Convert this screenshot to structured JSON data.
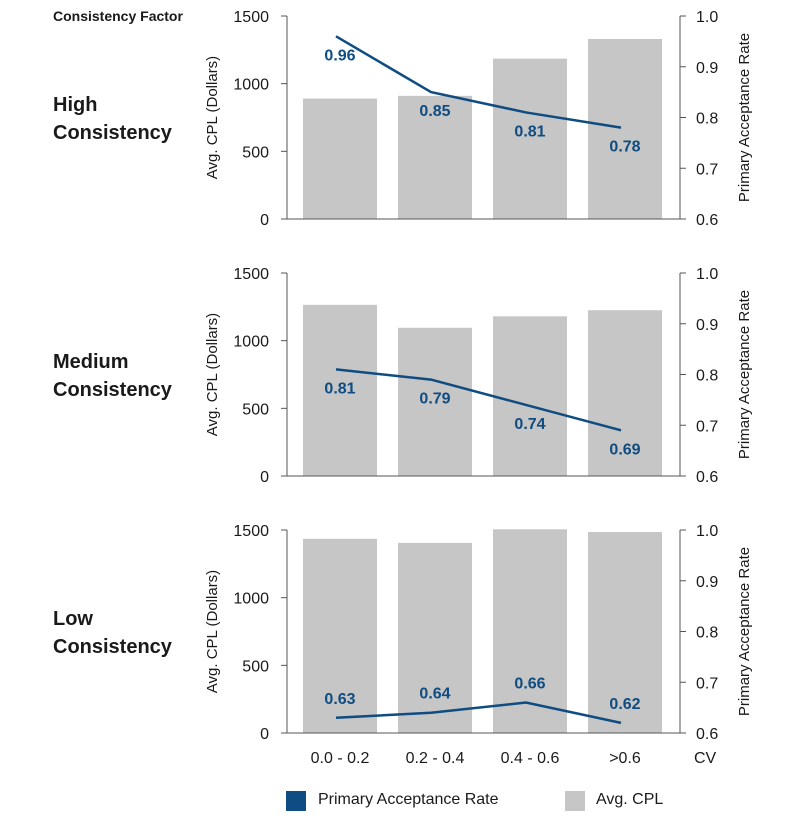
{
  "colors": {
    "bar": "#c6c6c6",
    "line": "#0f4c81",
    "axis": "#555555",
    "text": "#1a1a1a"
  },
  "header": {
    "label": "Consistency Factor"
  },
  "shared": {
    "left_axis_label": "Avg. CPL (Dollars)",
    "right_axis_label": "Primary Acceptance Rate",
    "x_axis_label": "CV",
    "categories": [
      "0.0 - 0.2",
      "0.2 - 0.4",
      "0.4 - 0.6",
      ">0.6"
    ],
    "left_ticks": [
      "0",
      "500",
      "1000",
      "1500"
    ],
    "right_ticks": [
      "0.6",
      "0.7",
      "0.8",
      "0.9",
      "1.0"
    ]
  },
  "legend": {
    "line_label": "Primary Acceptance Rate",
    "bar_label": "Avg. CPL"
  },
  "panels": [
    {
      "row_label_1": "High",
      "row_label_2": "Consistency",
      "rate_labels": [
        "0.96",
        "0.85",
        "0.81",
        "0.78"
      ]
    },
    {
      "row_label_1": "Medium",
      "row_label_2": "Consistency",
      "rate_labels": [
        "0.81",
        "0.79",
        "0.74",
        "0.69"
      ]
    },
    {
      "row_label_1": "Low",
      "row_label_2": "Consistency",
      "rate_labels": [
        "0.63",
        "0.64",
        "0.66",
        "0.62"
      ]
    }
  ],
  "chart_data": [
    {
      "type": "bar",
      "facet": "High Consistency",
      "categories": [
        "0.0 - 0.2",
        "0.2 - 0.4",
        "0.4 - 0.6",
        ">0.6"
      ],
      "series": [
        {
          "name": "Avg. CPL",
          "axis": "left",
          "type": "bar",
          "values": [
            890,
            910,
            1185,
            1330
          ]
        },
        {
          "name": "Primary Acceptance Rate",
          "axis": "right",
          "type": "line",
          "values": [
            0.96,
            0.85,
            0.81,
            0.78
          ]
        }
      ],
      "xlabel": "CV",
      "ylabel": "Avg. CPL (Dollars)",
      "y2label": "Primary Acceptance Rate",
      "ylim": [
        0,
        1500
      ],
      "y2lim": [
        0.6,
        1.0
      ],
      "grid": false,
      "legend": "bottom"
    },
    {
      "type": "bar",
      "facet": "Medium Consistency",
      "categories": [
        "0.0 - 0.2",
        "0.2 - 0.4",
        "0.4 - 0.6",
        ">0.6"
      ],
      "series": [
        {
          "name": "Avg. CPL",
          "axis": "left",
          "type": "bar",
          "values": [
            1265,
            1095,
            1180,
            1225
          ]
        },
        {
          "name": "Primary Acceptance Rate",
          "axis": "right",
          "type": "line",
          "values": [
            0.81,
            0.79,
            0.74,
            0.69
          ]
        }
      ],
      "xlabel": "CV",
      "ylabel": "Avg. CPL (Dollars)",
      "y2label": "Primary Acceptance Rate",
      "ylim": [
        0,
        1500
      ],
      "y2lim": [
        0.6,
        1.0
      ],
      "grid": false,
      "legend": "bottom"
    },
    {
      "type": "bar",
      "facet": "Low Consistency",
      "categories": [
        "0.0 - 0.2",
        "0.2 - 0.4",
        "0.4 - 0.6",
        ">0.6"
      ],
      "series": [
        {
          "name": "Avg. CPL",
          "axis": "left",
          "type": "bar",
          "values": [
            1435,
            1405,
            1505,
            1485
          ]
        },
        {
          "name": "Primary Acceptance Rate",
          "axis": "right",
          "type": "line",
          "values": [
            0.63,
            0.64,
            0.66,
            0.62
          ]
        }
      ],
      "xlabel": "CV",
      "ylabel": "Avg. CPL (Dollars)",
      "y2label": "Primary Acceptance Rate",
      "ylim": [
        0,
        1500
      ],
      "y2lim": [
        0.6,
        1.0
      ],
      "grid": false,
      "legend": "bottom"
    }
  ]
}
